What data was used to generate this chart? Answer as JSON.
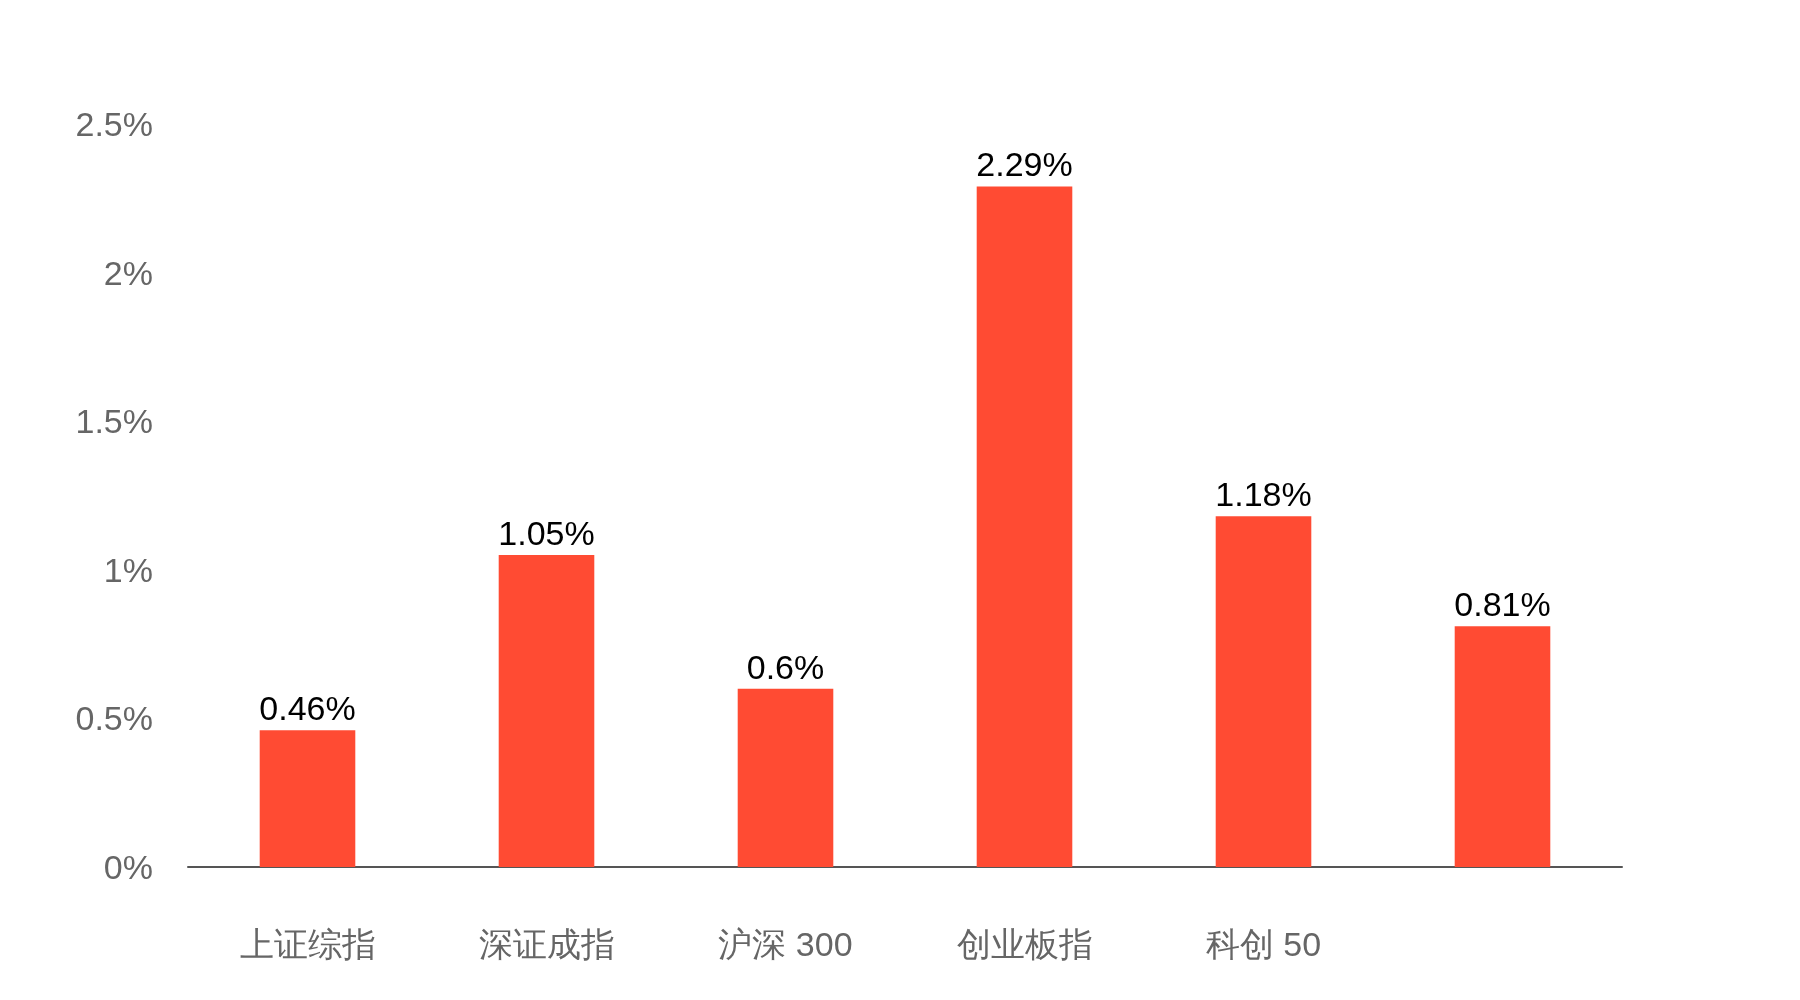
{
  "chart_data": {
    "type": "bar",
    "categories": [
      "上证综指",
      "深证成指",
      "沪深 300",
      "创业板指",
      "科创 50",
      null
    ],
    "values": [
      0.46,
      1.05,
      0.6,
      2.29,
      1.18,
      0.81
    ],
    "value_labels": [
      "0.46%",
      "1.05%",
      "0.6%",
      "2.29%",
      "1.18%",
      "0.81%"
    ],
    "color": "#ff4b33",
    "ylim": [
      0,
      2.5
    ],
    "yticks": [
      {
        "value": 0,
        "label": "0%"
      },
      {
        "value": 0.5,
        "label": "0.5%"
      },
      {
        "value": 1,
        "label": "1%"
      },
      {
        "value": 1.5,
        "label": "1.5%"
      },
      {
        "value": 2,
        "label": "2%"
      },
      {
        "value": 2.5,
        "label": "2.5%"
      }
    ],
    "grid": false
  }
}
